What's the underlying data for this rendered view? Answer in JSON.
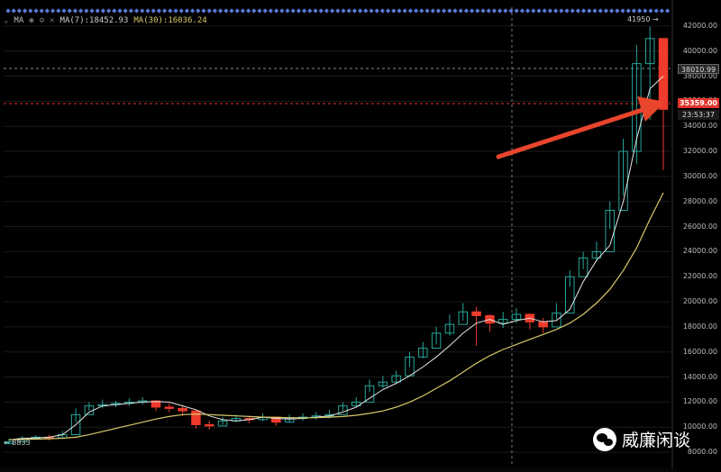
{
  "indicator_bar": {
    "name": "MA",
    "ma7_label": "MA(7):18452.93",
    "ma30_label": "MA(30):16036.24"
  },
  "price_tags": {
    "dotted_level": "38010.99",
    "current_price": "35359.00",
    "countdown": "23:53:37"
  },
  "annotations": {
    "high_marker": "41950 →",
    "low_marker": "← 8833"
  },
  "watermark": {
    "text": "威廉闲谈",
    "icon": "wechat-icon"
  },
  "colors": {
    "up": "#26a69a",
    "down": "#ef3b2c",
    "ma7": "#e6e6e6",
    "ma30": "#d8c96a",
    "arrow": "#e8452c",
    "marker_dots": "#5b7bd8"
  },
  "chart_data": {
    "type": "candlestick",
    "y_ticks": [
      "42000.00",
      "40000.00",
      "38000.00",
      "36000.00",
      "34000.00",
      "32000.00",
      "30000.00",
      "28000.00",
      "26000.00",
      "24000.00",
      "22000.00",
      "20000.00",
      "18000.00",
      "16000.00",
      "14000.00",
      "12000.00",
      "10000.00",
      "8000.00"
    ],
    "ylim": [
      7000,
      43500
    ],
    "series": [
      {
        "name": "MA(7)",
        "values": [
          9000,
          9100,
          9150,
          9200,
          9400,
          10200,
          11200,
          11700,
          11800,
          11900,
          12000,
          12050,
          12000,
          11700,
          11400,
          10900,
          10600,
          10500,
          10600,
          10800,
          10700,
          10650,
          10700,
          10800,
          10900,
          11200,
          11600,
          12300,
          13000,
          13500,
          14100,
          14800,
          15600,
          16500,
          17500,
          18300,
          18600,
          18200,
          18500,
          18700,
          18400,
          18500,
          19400,
          21600,
          23300,
          24500,
          28000,
          33000,
          37000,
          38000
        ]
      },
      {
        "name": "MA(30)",
        "values": [
          9000,
          9020,
          9050,
          9080,
          9120,
          9200,
          9400,
          9650,
          9900,
          10150,
          10400,
          10650,
          10850,
          11000,
          11050,
          11000,
          10950,
          10900,
          10850,
          10800,
          10780,
          10760,
          10750,
          10760,
          10800,
          10850,
          10950,
          11100,
          11300,
          11600,
          12000,
          12500,
          13100,
          13700,
          14400,
          15100,
          15700,
          16200,
          16600,
          17000,
          17400,
          17800,
          18300,
          19000,
          19900,
          21000,
          22500,
          24300,
          26600,
          28700
        ]
      },
      {
        "name": "close",
        "values": [
          8833,
          9100,
          9200,
          9150,
          9400,
          11000,
          11700,
          11800,
          11900,
          12000,
          12100,
          11600,
          11500,
          11300,
          10200,
          10100,
          10500,
          10700,
          10600,
          10800,
          10400,
          10700,
          10800,
          10900,
          11000,
          11700,
          12000,
          13300,
          13600,
          14100,
          15600,
          16300,
          17500,
          18200,
          19200,
          18900,
          18300,
          18600,
          19000,
          18400,
          18000,
          19100,
          22000,
          23500,
          24000,
          27300,
          32000,
          39000,
          41000,
          35359
        ]
      },
      {
        "name": "high",
        "values": [
          9100,
          9300,
          9350,
          9400,
          9700,
          11500,
          12000,
          12200,
          12100,
          12300,
          12400,
          12000,
          11900,
          11700,
          11000,
          10500,
          10800,
          11000,
          10900,
          11100,
          10800,
          11000,
          11100,
          11200,
          11400,
          12000,
          12400,
          13800,
          14100,
          14500,
          16000,
          16800,
          18000,
          19000,
          19900,
          19600,
          19000,
          19200,
          19500,
          19100,
          18700,
          19900,
          22500,
          24000,
          24800,
          28000,
          33000,
          40500,
          41950,
          41000
        ]
      },
      {
        "name": "low",
        "values": [
          8700,
          8950,
          9050,
          8950,
          9200,
          10400,
          11300,
          11500,
          11600,
          11700,
          11800,
          11300,
          11200,
          10900,
          9900,
          9800,
          10200,
          10400,
          10300,
          10500,
          10100,
          10400,
          10500,
          10600,
          10700,
          11300,
          11700,
          12800,
          13100,
          13500,
          14800,
          15500,
          16600,
          17300,
          18500,
          16500,
          17600,
          17900,
          18300,
          17800,
          17500,
          18600,
          21200,
          22600,
          23200,
          25800,
          28500,
          31000,
          34500,
          30500
        ]
      }
    ]
  }
}
